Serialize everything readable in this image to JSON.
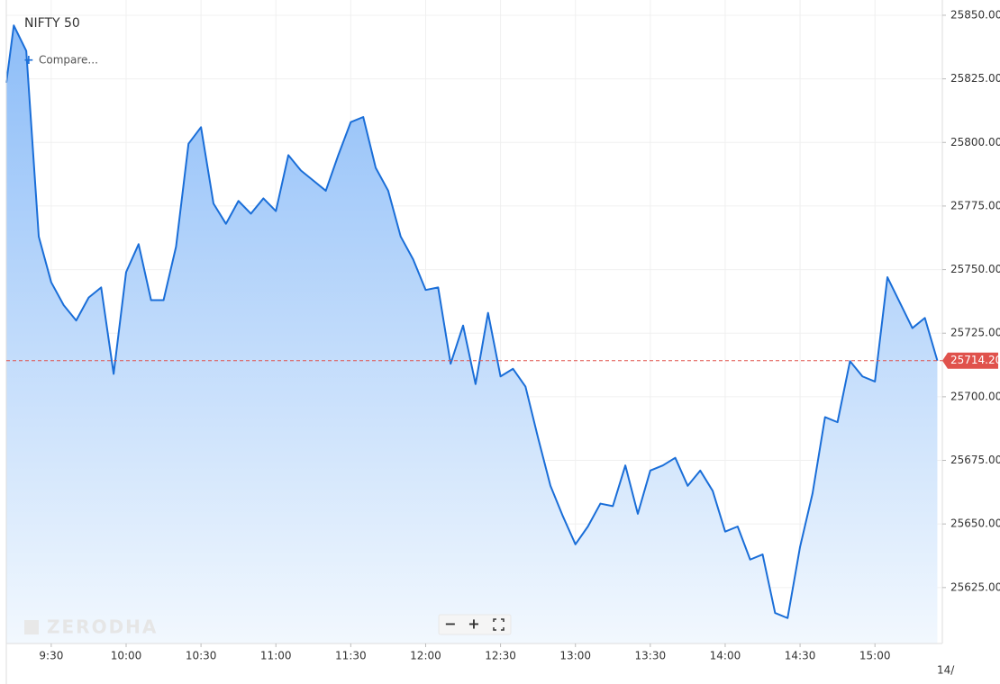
{
  "chart_data": {
    "type": "area",
    "title": "NIFTY 50",
    "compare_label": "Compare...",
    "watermark": "ZERODHA",
    "controls": [
      "−",
      "+"
    ],
    "date_label": "14/",
    "color": "#1a6ed8",
    "fill_top": "#8dbdf8",
    "fill_bottom": "#f2f8fe",
    "grid": true,
    "x": [
      552,
      555,
      560,
      565,
      570,
      575,
      580,
      585,
      590,
      595,
      600,
      605,
      610,
      615,
      620,
      625,
      630,
      635,
      640,
      645,
      650,
      655,
      660,
      665,
      670,
      675,
      680,
      685,
      690,
      695,
      700,
      705,
      710,
      715,
      720,
      725,
      730,
      735,
      740,
      745,
      750,
      755,
      760,
      765,
      770,
      775,
      780,
      785,
      790,
      795,
      800,
      805,
      810,
      815,
      820,
      825,
      830,
      835,
      840,
      845,
      850,
      855,
      860,
      865,
      870,
      875,
      880,
      885,
      890,
      895,
      900,
      905,
      910,
      915,
      920,
      925
    ],
    "values": [
      25823.5,
      25846,
      25836,
      25763,
      25745,
      25736,
      25730,
      25739,
      25743,
      25709,
      25749,
      25760,
      25738,
      25738,
      25759,
      25799.5,
      25806,
      25776,
      25768,
      25777,
      25772,
      25778,
      25773,
      25795,
      25789,
      25785,
      25781,
      25795,
      25808,
      25810,
      25790,
      25781,
      25763,
      25754,
      25742,
      25743,
      25713,
      25728,
      25705,
      25733,
      25708,
      25711,
      25704,
      25684,
      25665,
      25653,
      25642,
      25649,
      25658,
      25657,
      25673,
      25654,
      25671,
      25673,
      25676,
      25665,
      25671,
      25663,
      25647,
      25649,
      25636,
      25638,
      25615,
      25613,
      25641,
      25662,
      25692,
      25690,
      25714,
      25708,
      25706,
      25747,
      25737,
      25727,
      25731,
      25714.2
    ],
    "xlim": [
      552,
      927
    ],
    "xticks": [
      {
        "value": 570,
        "label": "9:30"
      },
      {
        "value": 600,
        "label": "10:00"
      },
      {
        "value": 630,
        "label": "10:30"
      },
      {
        "value": 660,
        "label": "11:00"
      },
      {
        "value": 690,
        "label": "11:30"
      },
      {
        "value": 720,
        "label": "12:00"
      },
      {
        "value": 750,
        "label": "12:30"
      },
      {
        "value": 780,
        "label": "13:00"
      },
      {
        "value": 810,
        "label": "13:30"
      },
      {
        "value": 840,
        "label": "14:00"
      },
      {
        "value": 870,
        "label": "14:30"
      },
      {
        "value": 900,
        "label": "15:00"
      }
    ],
    "ylim": [
      25603,
      25856
    ],
    "yticks": [
      {
        "value": 25625,
        "label": "25625.00"
      },
      {
        "value": 25650,
        "label": "25650.00"
      },
      {
        "value": 25675,
        "label": "25675.00"
      },
      {
        "value": 25700,
        "label": "25700.00"
      },
      {
        "value": 25725,
        "label": "25725.00"
      },
      {
        "value": 25750,
        "label": "25750.00"
      },
      {
        "value": 25775,
        "label": "25775.00"
      },
      {
        "value": 25800,
        "label": "25800.00"
      },
      {
        "value": 25825,
        "label": "25825.00"
      },
      {
        "value": 25850,
        "label": "25850.00"
      }
    ],
    "last_price": {
      "value": 25714.2,
      "label": "25714.20",
      "color": "#e0524c"
    }
  }
}
